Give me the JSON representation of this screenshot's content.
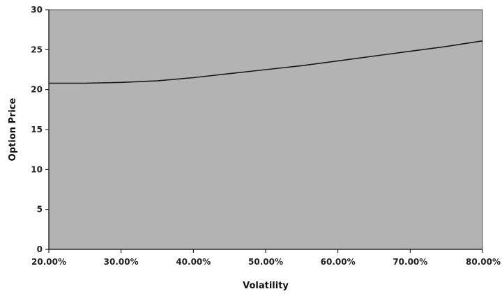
{
  "chart_data": {
    "type": "line",
    "title": "",
    "xlabel": "Volatility",
    "ylabel": "Option Price",
    "xlim": [
      0.2,
      0.8
    ],
    "ylim": [
      0,
      30
    ],
    "x_ticks": [
      "20.00%",
      "30.00%",
      "40.00%",
      "50.00%",
      "60.00%",
      "70.00%",
      "80.00%"
    ],
    "y_ticks": [
      "0",
      "5",
      "10",
      "15",
      "20",
      "25",
      "30"
    ],
    "grid": false,
    "legend": "none",
    "plot_background": "#b3b3b3",
    "series": [
      {
        "color": "#1a1a1a",
        "x": [
          0.2,
          0.25,
          0.3,
          0.35,
          0.4,
          0.45,
          0.5,
          0.55,
          0.6,
          0.65,
          0.7,
          0.75,
          0.8
        ],
        "y": [
          20.8,
          20.8,
          20.9,
          21.1,
          21.5,
          22.0,
          22.5,
          23.0,
          23.6,
          24.2,
          24.8,
          25.4,
          26.1
        ]
      }
    ]
  }
}
